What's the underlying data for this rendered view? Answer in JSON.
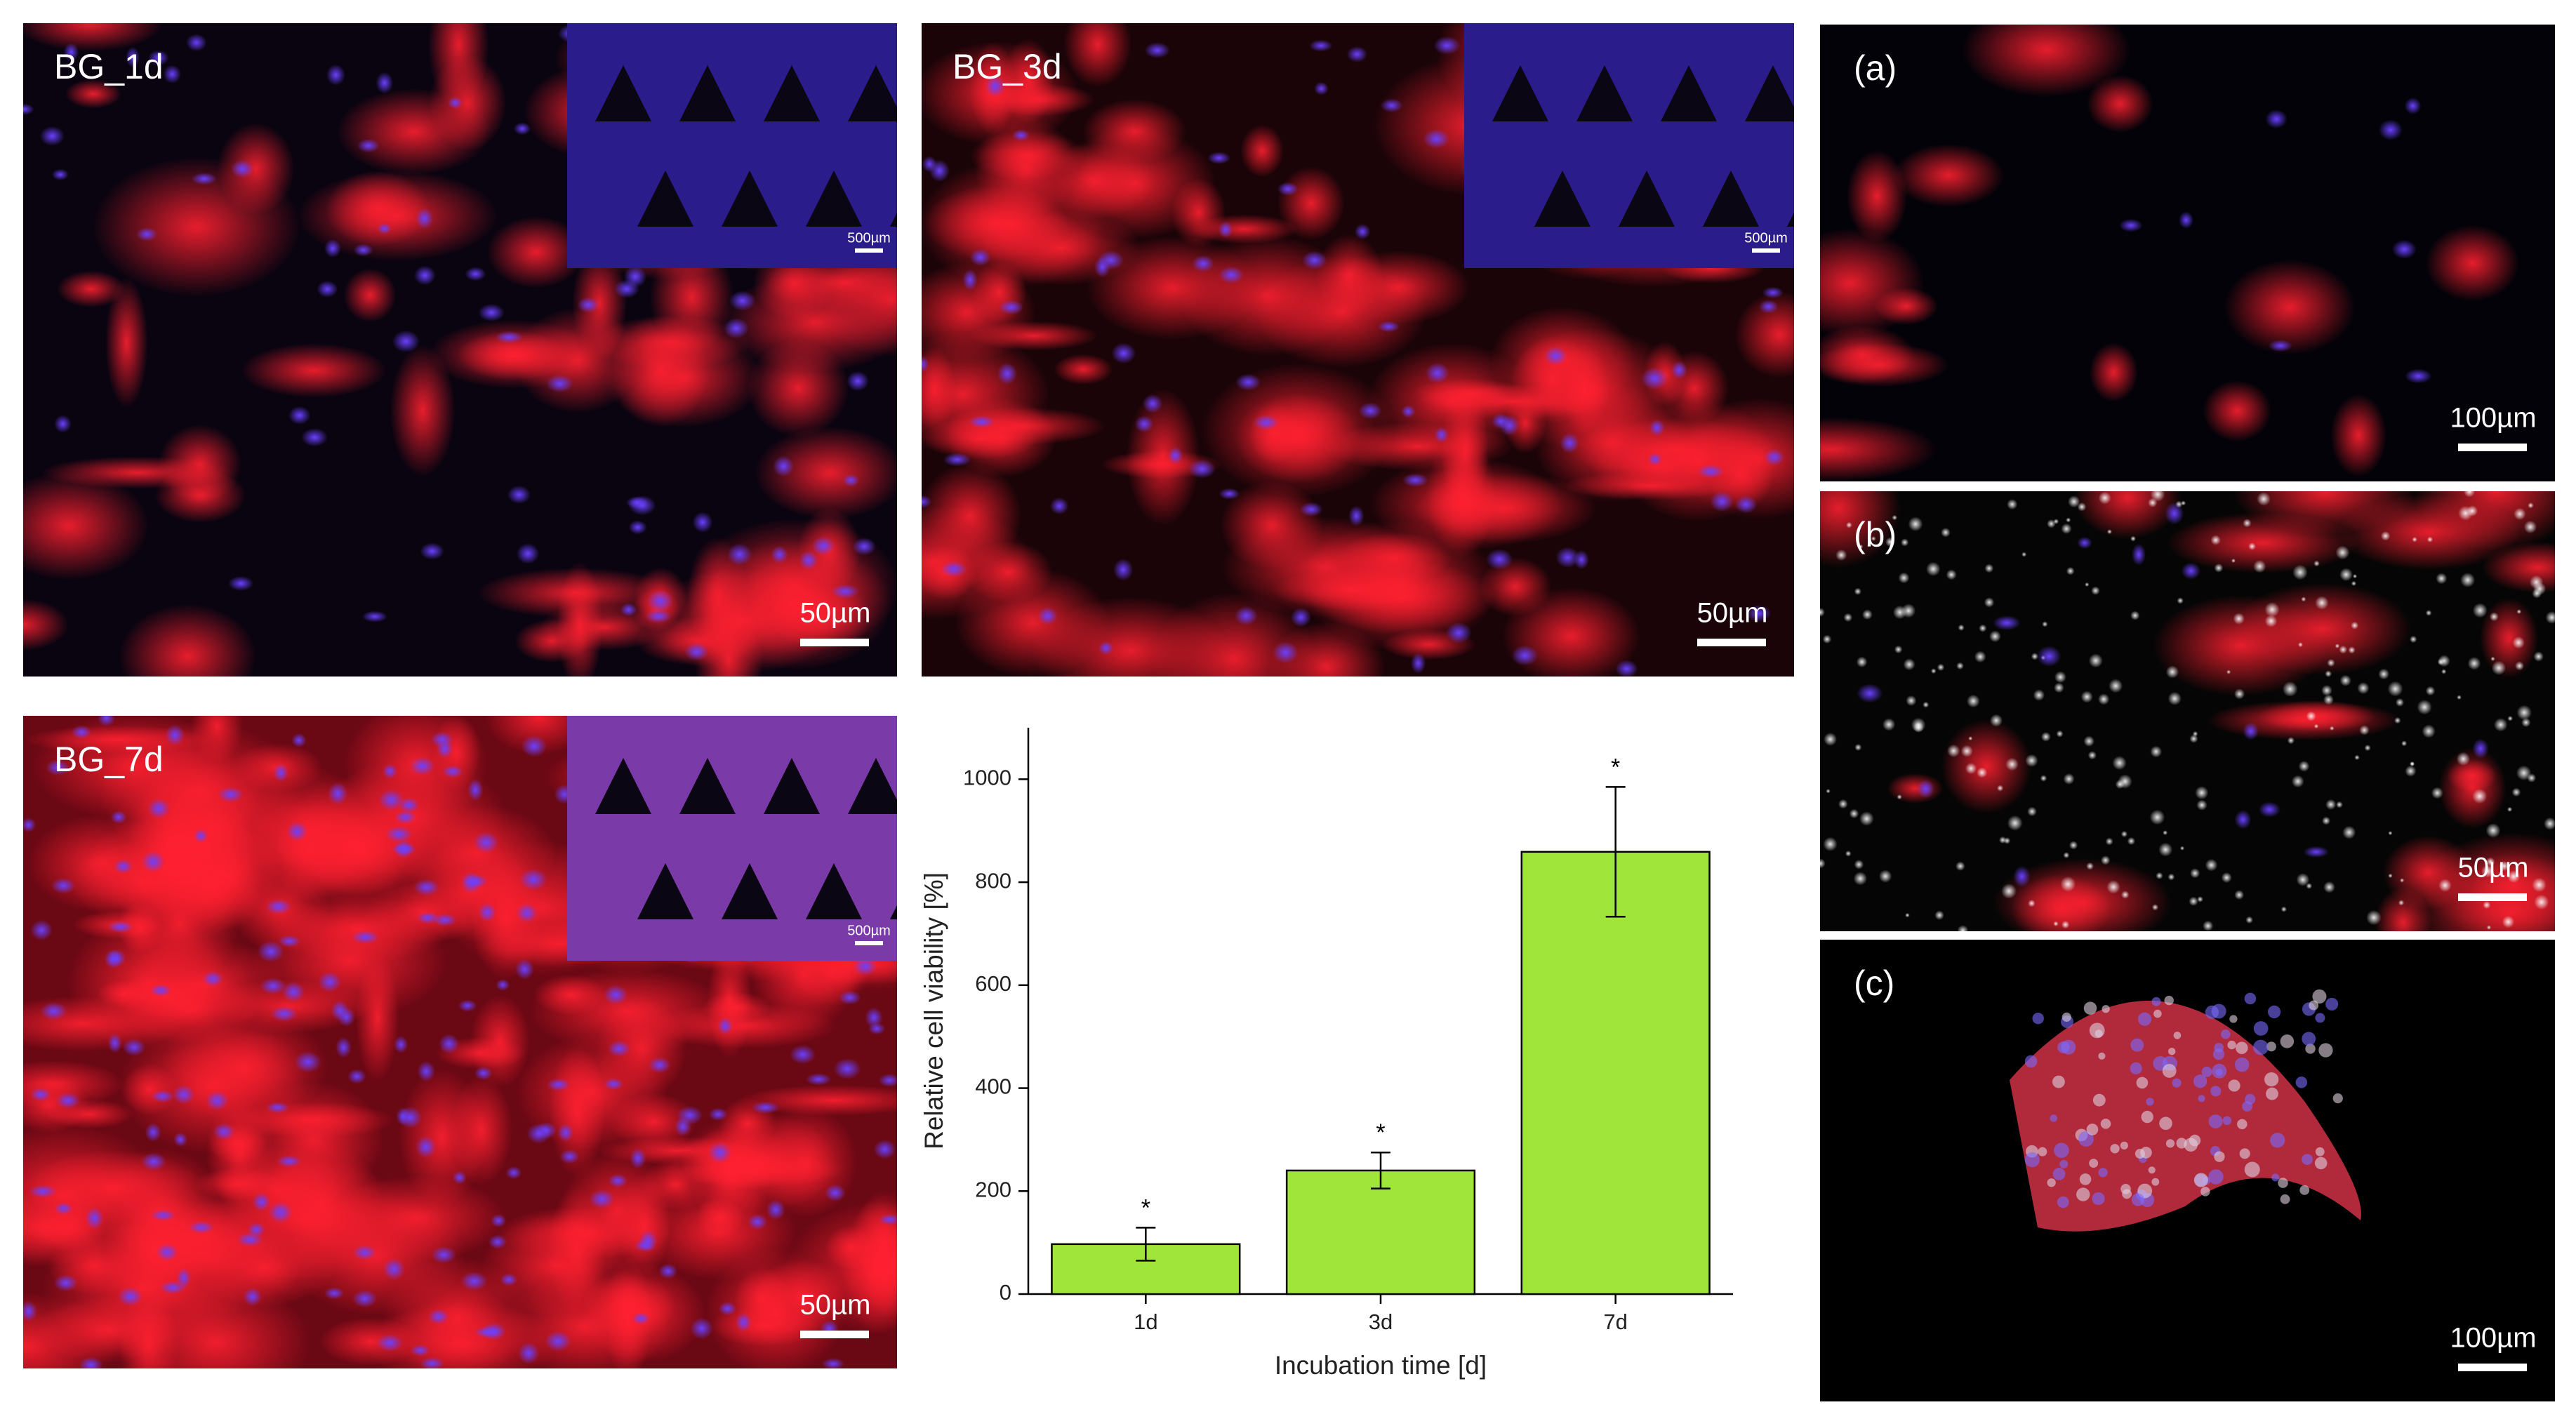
{
  "panels": [
    {
      "label": "BG_1d",
      "scale": "50µm",
      "inset_scale": "500µm"
    },
    {
      "label": "BG_3d",
      "scale": "50µm",
      "inset_scale": "500µm"
    },
    {
      "label": "BG_7d",
      "scale": "50µm",
      "inset_scale": "500µm"
    },
    {
      "label": "(a)",
      "scale": "100µm"
    },
    {
      "label": "(b)",
      "scale": "50µm"
    },
    {
      "label": "(c)",
      "scale": "100µm"
    }
  ],
  "chart_data": {
    "type": "bar",
    "categories": [
      "1d",
      "3d",
      "7d"
    ],
    "values": [
      97,
      240,
      859
    ],
    "errors": [
      32,
      35,
      126
    ],
    "annotations": [
      "*",
      "*",
      "*"
    ],
    "color": "#a0e63a",
    "x_label": "Incubation time [d]",
    "y_label": "Relative cell viability [%]",
    "ylim": [
      0,
      1100
    ],
    "yticks": [
      0,
      200,
      400,
      600,
      800,
      1000
    ]
  }
}
